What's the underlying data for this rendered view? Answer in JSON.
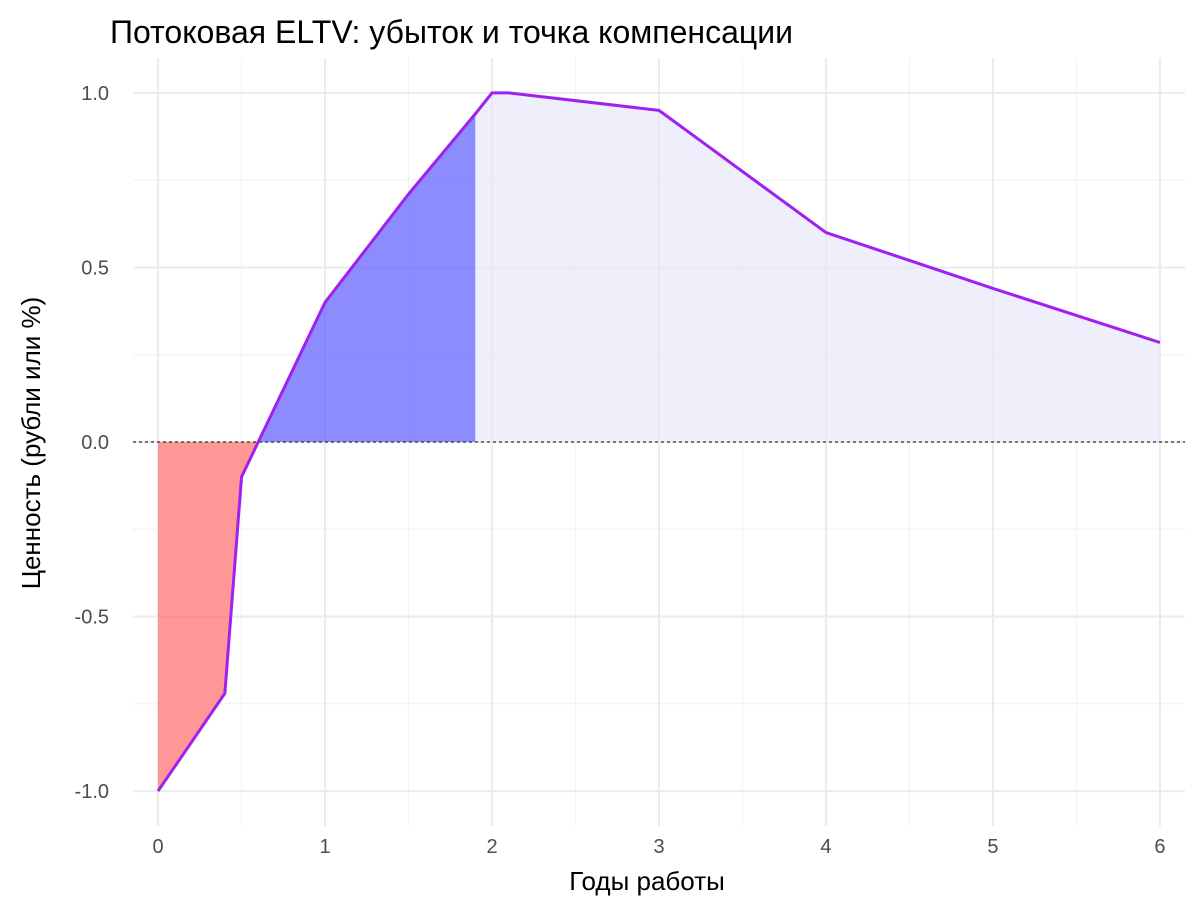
{
  "chart_data": {
    "type": "area",
    "title": "Потоковая ELTV: убыток и точка компенсации",
    "xlabel": "Годы работы",
    "ylabel": "Ценность (рубли или %)",
    "xlim": [
      -0.15,
      6.15
    ],
    "ylim": [
      -1.1,
      1.1
    ],
    "x_ticks": [
      0,
      1,
      2,
      3,
      4,
      5,
      6
    ],
    "x_tick_labels": [
      "0",
      "1",
      "2",
      "3",
      "4",
      "5",
      "6"
    ],
    "y_ticks": [
      -1.0,
      -0.5,
      0.0,
      0.5,
      1.0
    ],
    "y_tick_labels": [
      "-1.0",
      "-0.5",
      "0.0",
      "0.5",
      "1.0"
    ],
    "grid": true,
    "reference_line": {
      "y": 0,
      "style": "dashed",
      "color": "#333333"
    },
    "series": [
      {
        "x": [
          0,
          0.4,
          0.5,
          0.6,
          0.62,
          1,
          1.5,
          1.9,
          2,
          2.1,
          3,
          4,
          4.5,
          5,
          6
        ],
        "y": [
          -1.0,
          -0.72,
          -0.1,
          0.0,
          0.02,
          0.4,
          0.71,
          0.94,
          1.0,
          1.0,
          0.95,
          0.6,
          0.52,
          0.44,
          0.285
        ],
        "line_color": "#a020f0"
      }
    ],
    "shaded_regions": [
      {
        "from": 0,
        "to": 0.6,
        "color": "#ff6666",
        "opacity": 0.68
      },
      {
        "from": 0.6,
        "to": 1.9,
        "color": "#6666ff",
        "opacity": 0.75
      },
      {
        "from": 1.9,
        "to": 6,
        "color": "#e6e6fa",
        "opacity": 0.65
      }
    ]
  }
}
